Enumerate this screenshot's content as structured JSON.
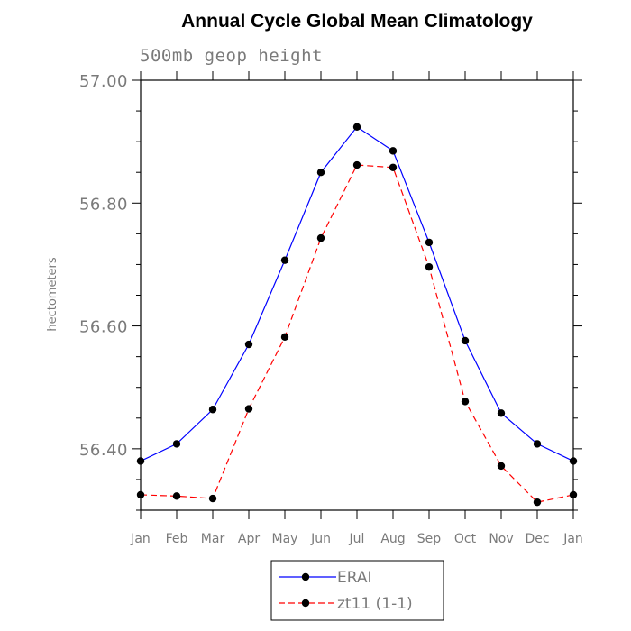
{
  "chart_data": {
    "type": "line",
    "title": "Annual Cycle Global Mean Climatology",
    "subtitle": "500mb geop height",
    "ylabel": "hectometers",
    "xlabel": "",
    "categories": [
      "Jan",
      "Feb",
      "Mar",
      "Apr",
      "May",
      "Jun",
      "Jul",
      "Aug",
      "Sep",
      "Oct",
      "Nov",
      "Dec",
      "Jan"
    ],
    "ylim": [
      56.3,
      57.0
    ],
    "y_major_ticks": [
      56.4,
      56.6,
      56.8,
      57.0
    ],
    "y_tick_labels": [
      "56.40",
      "56.60",
      "56.80",
      "57.00"
    ],
    "y_minor_step": 0.05,
    "grid": false,
    "legend_position": "bottom-center",
    "series": [
      {
        "name": "ERAI",
        "color": "#0000ff",
        "line_style": "solid",
        "marker": "filled-circle",
        "values": [
          56.38,
          56.408,
          56.464,
          56.57,
          56.707,
          56.85,
          56.924,
          56.885,
          56.736,
          56.576,
          56.458,
          56.408,
          56.38
        ]
      },
      {
        "name": "zt11 (1-1)",
        "color": "#ff0000",
        "line_style": "dashed",
        "marker": "filled-circle",
        "values": [
          56.325,
          56.323,
          56.319,
          56.465,
          56.582,
          56.743,
          56.862,
          56.858,
          56.696,
          56.477,
          56.372,
          56.313,
          56.325
        ]
      }
    ]
  }
}
